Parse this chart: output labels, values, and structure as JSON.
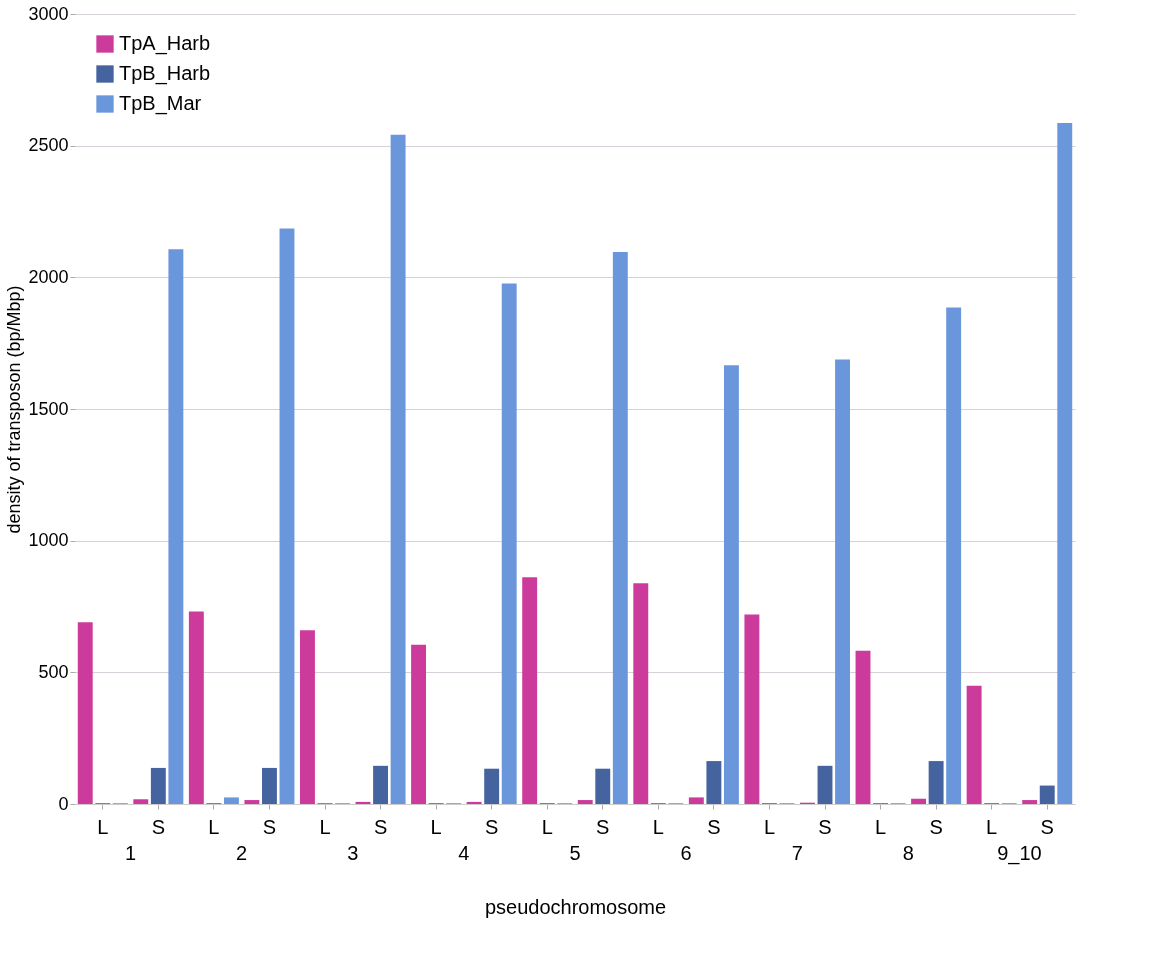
{
  "chart_data": {
    "type": "bar",
    "categories": [
      "L",
      "S",
      "L",
      "S",
      "L",
      "S",
      "L",
      "S",
      "L",
      "S",
      "L",
      "S",
      "L",
      "S",
      "L",
      "S",
      "L",
      "S"
    ],
    "series": [
      {
        "name": "TpA_Harb",
        "color": "#cc3b9b",
        "values": [
          690,
          18,
          731,
          15,
          660,
          8,
          605,
          8,
          861,
          15,
          838,
          25,
          720,
          5,
          582,
          20,
          449,
          15
        ]
      },
      {
        "name": "TpB_Harb",
        "color": "#44639f",
        "values": [
          3,
          137,
          3,
          137,
          3,
          145,
          3,
          134,
          3,
          134,
          3,
          163,
          3,
          145,
          3,
          163,
          3,
          70
        ]
      },
      {
        "name": "TpB_Mar",
        "color": "#6a97dc",
        "values": [
          3,
          2107,
          25,
          2185,
          3,
          2541,
          3,
          1977,
          3,
          2096,
          3,
          1666,
          3,
          1688,
          3,
          1885,
          3,
          2586
        ]
      }
    ],
    "annotations": [
      "1",
      "2",
      "3",
      "4",
      "5",
      "6",
      "7",
      "8",
      "9_10"
    ],
    "xlabel": "pseudochromosome",
    "ylabel": "density of transposon (bp/Mbp)",
    "ylim": [
      0,
      3000
    ],
    "yticks": [
      0,
      500,
      1000,
      1500,
      2000,
      2500,
      3000
    ],
    "grid": "y",
    "legend": "top left"
  }
}
